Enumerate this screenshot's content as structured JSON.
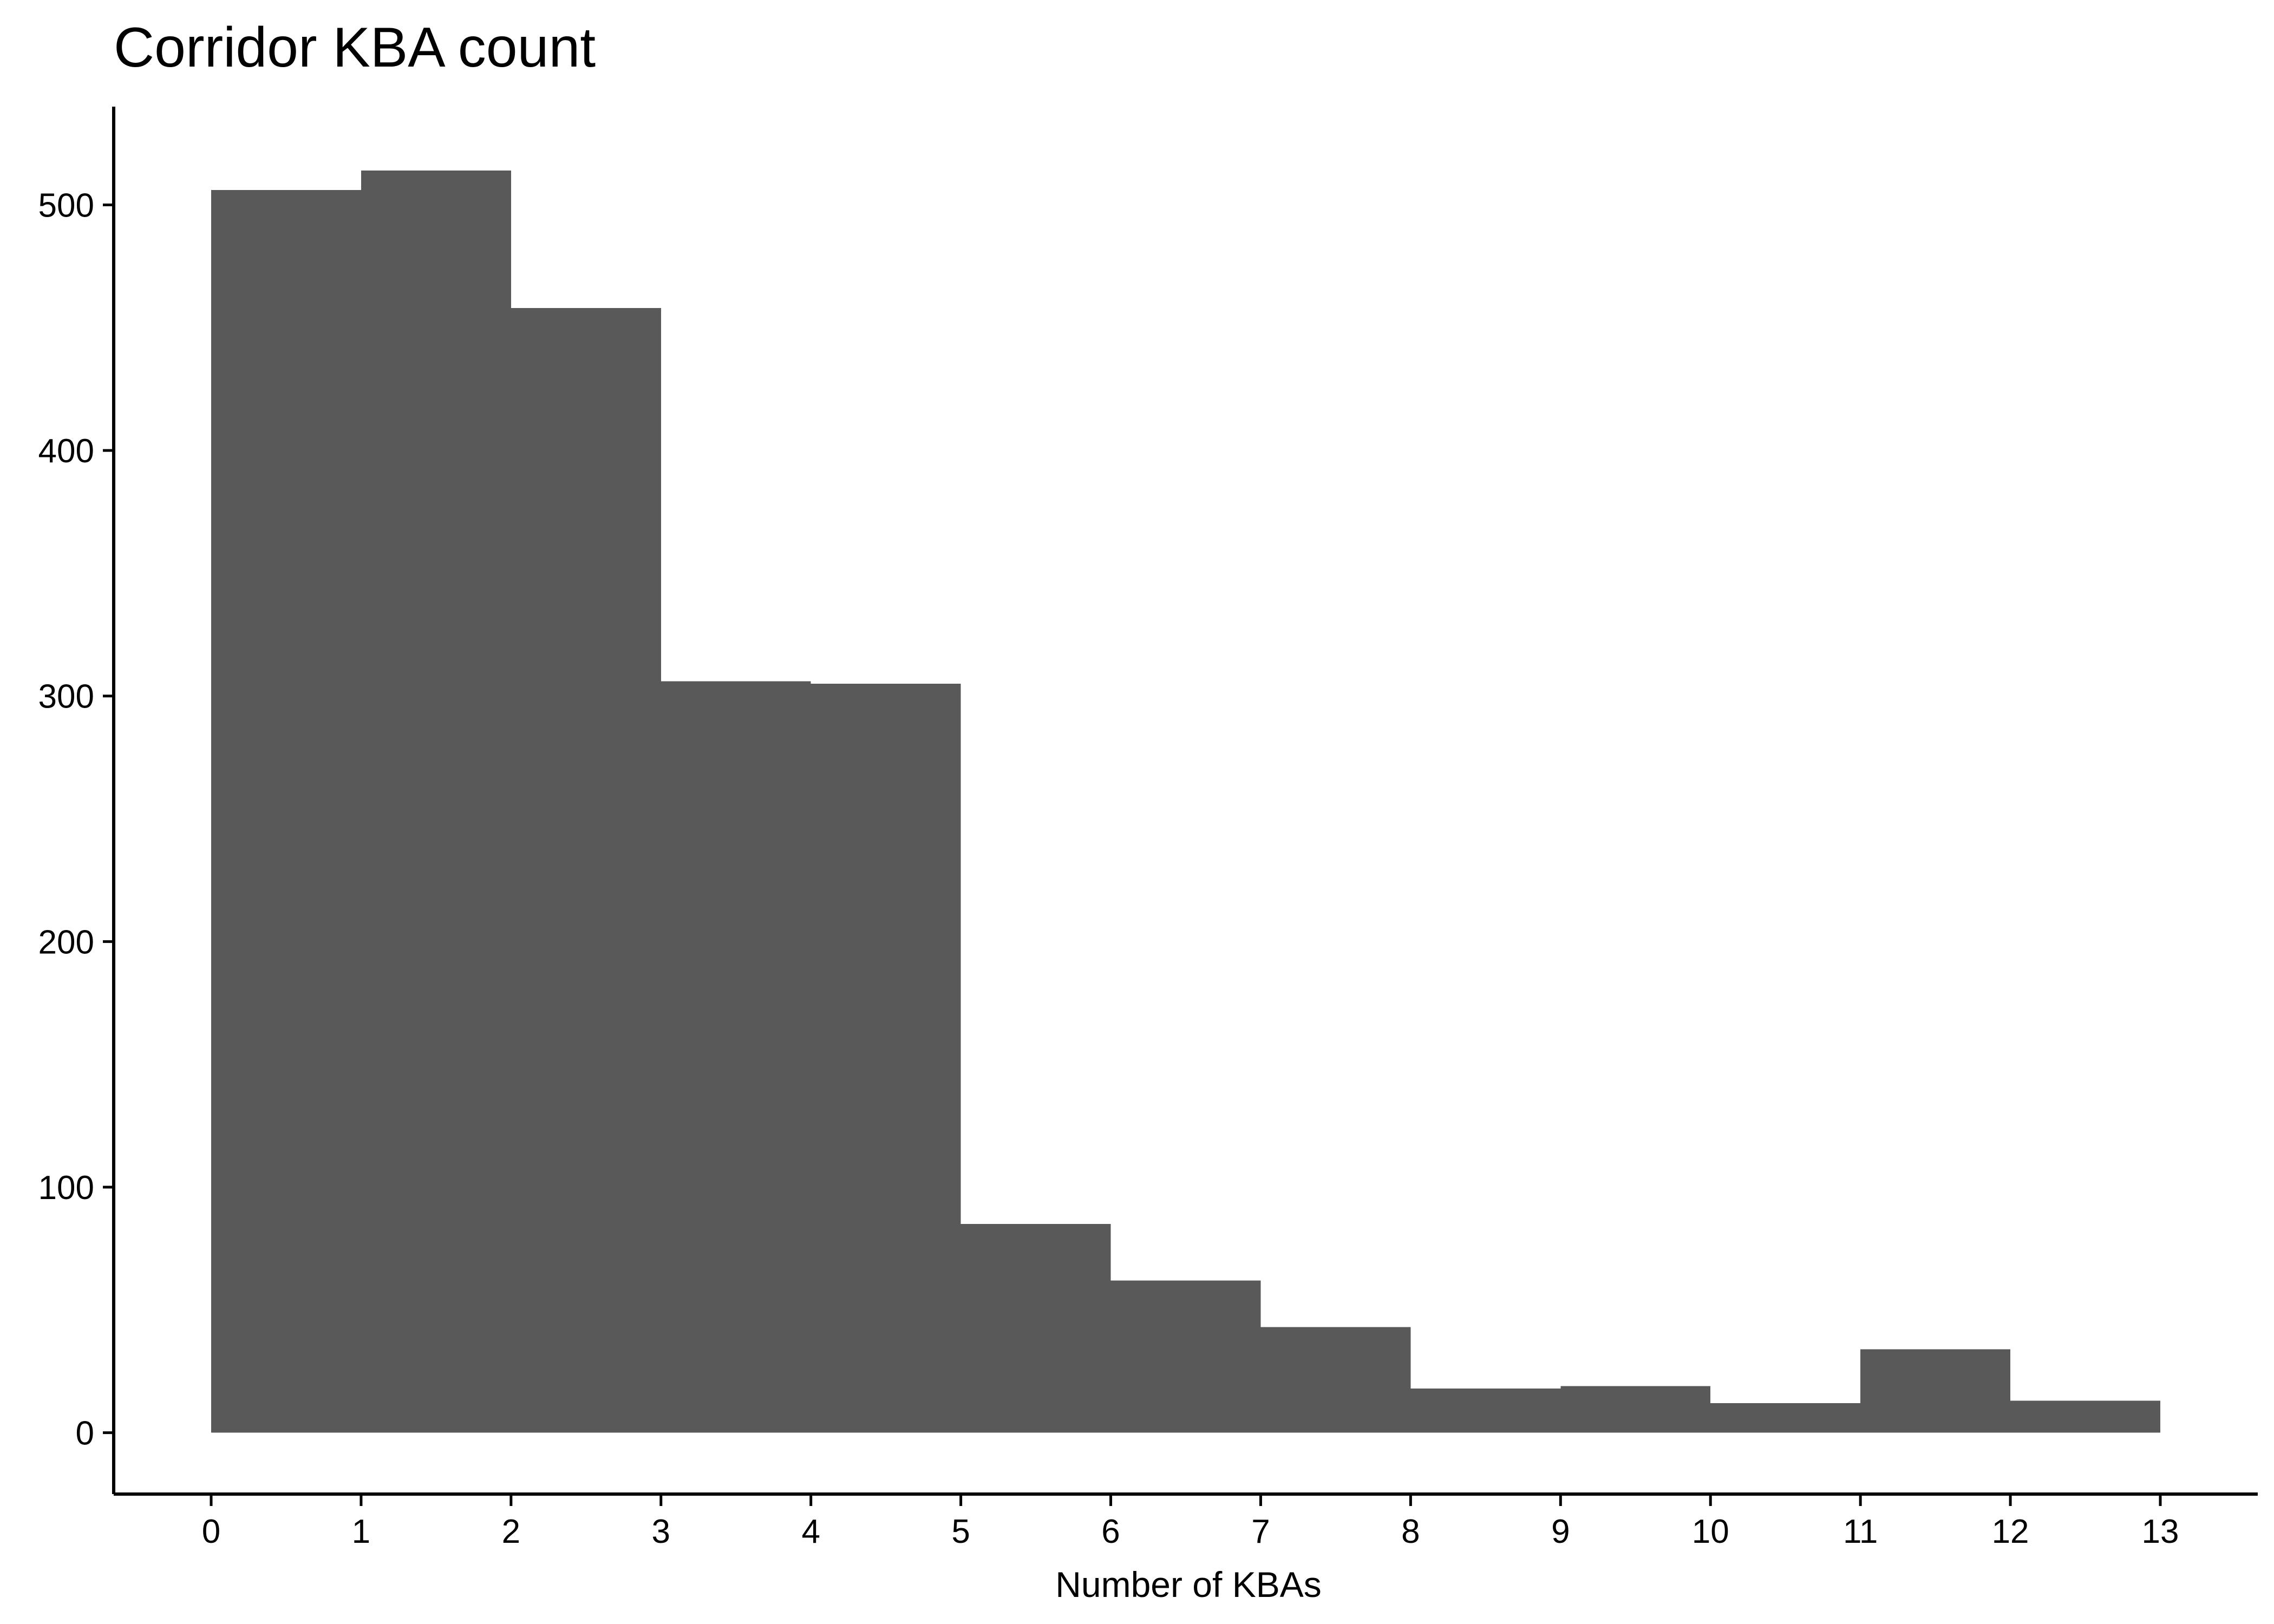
{
  "chart_data": {
    "type": "bar",
    "title": "Corridor KBA count",
    "xlabel": "Number of KBAs",
    "ylabel": "",
    "bins": [
      {
        "start": 0,
        "end": 1,
        "count": 506
      },
      {
        "start": 1,
        "end": 2,
        "count": 514
      },
      {
        "start": 2,
        "end": 3,
        "count": 458
      },
      {
        "start": 3,
        "end": 4,
        "count": 306
      },
      {
        "start": 4,
        "end": 5,
        "count": 305
      },
      {
        "start": 5,
        "end": 6,
        "count": 85
      },
      {
        "start": 6,
        "end": 7,
        "count": 62
      },
      {
        "start": 7,
        "end": 8,
        "count": 43
      },
      {
        "start": 8,
        "end": 9,
        "count": 18
      },
      {
        "start": 9,
        "end": 10,
        "count": 19
      },
      {
        "start": 10,
        "end": 11,
        "count": 12
      },
      {
        "start": 11,
        "end": 12,
        "count": 34
      },
      {
        "start": 12,
        "end": 13,
        "count": 13
      }
    ],
    "x_ticks": [
      "0",
      "1",
      "2",
      "3",
      "4",
      "5",
      "6",
      "7",
      "8",
      "9",
      "10",
      "11",
      "12",
      "13"
    ],
    "y_ticks": [
      "0",
      "100",
      "200",
      "300",
      "400",
      "500"
    ],
    "xlim": [
      -0.65,
      13.65
    ],
    "ylim": [
      -25,
      540
    ],
    "bar_color": "#595959",
    "axis_color": "#000000",
    "grid": false,
    "legend": "none"
  }
}
